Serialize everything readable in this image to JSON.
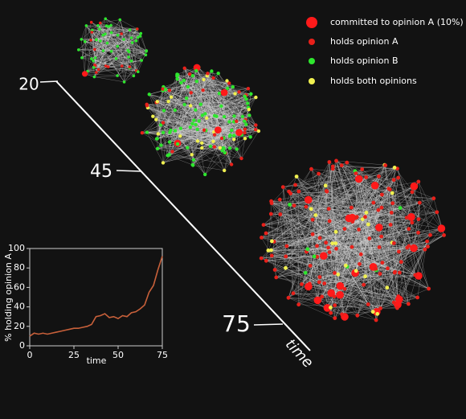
{
  "chart_data": {
    "type": "line",
    "x_label": "time",
    "y_label": "% holding opinion A",
    "x": [
      0,
      2.5,
      5,
      7.5,
      10,
      12.5,
      15,
      17.5,
      20,
      22.5,
      25,
      27.5,
      30,
      32.5,
      35,
      37.5,
      40,
      42.5,
      45,
      47.5,
      50,
      52.5,
      55,
      57.5,
      60,
      62.5,
      65,
      67.5,
      70,
      72.5,
      75
    ],
    "series": [
      {
        "color": "#c8603a",
        "values": [
          10,
          13,
          12,
          13,
          12,
          13,
          14,
          15,
          16,
          17,
          18,
          18,
          19,
          20,
          22,
          30,
          31,
          33,
          29,
          30,
          28,
          31,
          30,
          34,
          35,
          38,
          42,
          55,
          62,
          78,
          92
        ]
      }
    ],
    "xlim": [
      0,
      75
    ],
    "ylim": [
      0,
      100
    ],
    "xticks": [
      0,
      25,
      50,
      75
    ],
    "yticks": [
      0,
      20,
      40,
      60,
      80,
      100
    ]
  },
  "legend": [
    {
      "label": "committed to opinion A (10%)",
      "color": "#ff1a1a"
    },
    {
      "label": "holds opinion A",
      "color": "#e8201a"
    },
    {
      "label": "holds opinion B",
      "color": "#2ee62e"
    },
    {
      "label": "holds both opinions",
      "color": "#f0f050"
    }
  ],
  "timeline": {
    "snapshots": [
      {
        "time": 20
      },
      {
        "time": 45
      },
      {
        "time": 75
      }
    ],
    "axis_label": "time"
  }
}
